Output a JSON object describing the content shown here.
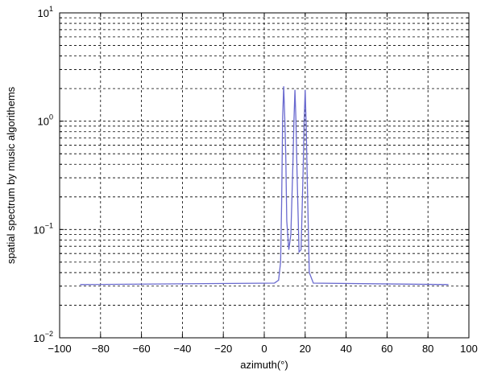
{
  "chart_data": {
    "type": "line",
    "xlabel": "azimuth(°)",
    "ylabel": "spatial spectrum by music algorithems",
    "xlim": [
      -100,
      100
    ],
    "ylim": [
      0.01,
      10
    ],
    "yscale": "log",
    "grid": true,
    "xticks": [
      -100,
      -80,
      -60,
      -40,
      -20,
      0,
      20,
      40,
      60,
      80,
      100
    ],
    "xtick_labels": [
      "−100",
      "−80",
      "−60",
      "−40",
      "−20",
      "0",
      "20",
      "40",
      "60",
      "80",
      "100"
    ],
    "yticks": [
      {
        "value": 0.01,
        "mantissa": "10",
        "exponent": "−2"
      },
      {
        "value": 0.1,
        "mantissa": "10",
        "exponent": "−1"
      },
      {
        "value": 1,
        "mantissa": "10",
        "exponent": "0"
      },
      {
        "value": 10,
        "mantissa": "10",
        "exponent": "1"
      }
    ],
    "series": [
      {
        "color": "#6a6acf",
        "x": [
          -90,
          5,
          7,
          8,
          8.5,
          9,
          9.5,
          10,
          10.5,
          11,
          12,
          13,
          14,
          14.5,
          15,
          15.5,
          16,
          17,
          18,
          19,
          19.5,
          20,
          20.5,
          21,
          22,
          24,
          90
        ],
        "y": [
          0.031,
          0.032,
          0.034,
          0.05,
          0.18,
          1.1,
          2.1,
          1.1,
          0.5,
          0.12,
          0.065,
          0.09,
          0.4,
          1.0,
          1.95,
          1.0,
          0.35,
          0.062,
          0.065,
          0.35,
          1.0,
          1.95,
          0.9,
          0.3,
          0.04,
          0.032,
          0.031
        ]
      }
    ]
  }
}
